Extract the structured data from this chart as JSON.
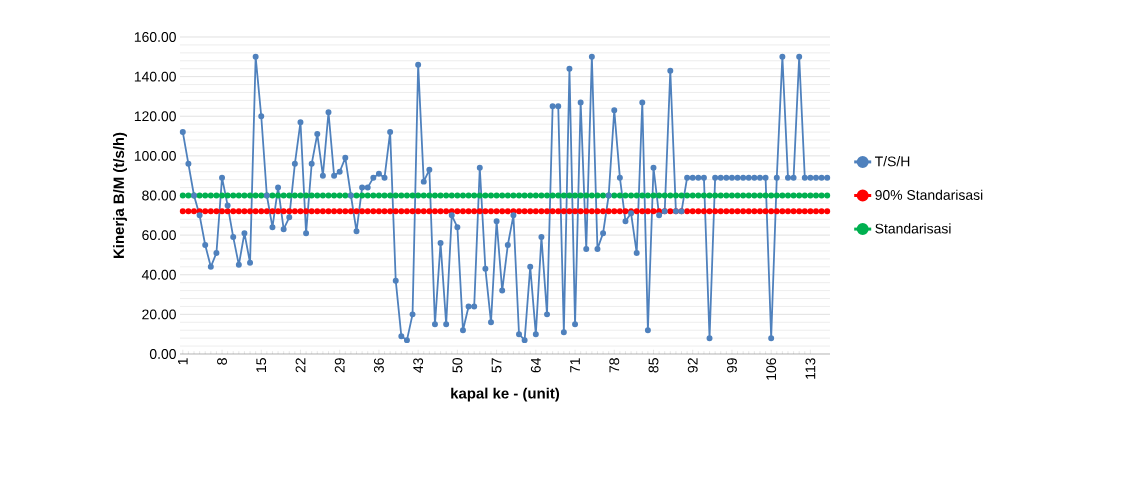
{
  "chart_data": {
    "type": "line",
    "xlabel": "kapal ke - (unit)",
    "ylabel": "Kinerja B/M (t/s/h)",
    "x": [
      1,
      2,
      3,
      4,
      5,
      6,
      7,
      8,
      9,
      10,
      11,
      12,
      13,
      14,
      15,
      16,
      17,
      18,
      19,
      20,
      21,
      22,
      23,
      24,
      25,
      26,
      27,
      28,
      29,
      30,
      31,
      32,
      33,
      34,
      35,
      36,
      37,
      38,
      39,
      40,
      41,
      42,
      43,
      44,
      45,
      46,
      47,
      48,
      49,
      50,
      51,
      52,
      53,
      54,
      55,
      56,
      57,
      58,
      59,
      60,
      61,
      62,
      63,
      64,
      65,
      66,
      67,
      68,
      69,
      70,
      71,
      72,
      73,
      74,
      75,
      76,
      77,
      78,
      79,
      80,
      81,
      82,
      83,
      84,
      85,
      86,
      87,
      88,
      89,
      90,
      91,
      92,
      93,
      94,
      95,
      96,
      97,
      98,
      99,
      100,
      101,
      102,
      103,
      104,
      105,
      106,
      107,
      108,
      109,
      110,
      111,
      112,
      113,
      114,
      115,
      116
    ],
    "series": [
      {
        "name": "T/S/H",
        "color": "#4f81bd",
        "values": [
          112,
          96,
          80,
          70,
          55,
          44,
          51,
          89,
          75,
          59,
          45,
          61,
          46,
          150,
          120,
          80,
          64,
          84,
          63,
          69,
          96,
          117,
          61,
          96,
          111,
          90,
          122,
          90,
          92,
          99,
          80,
          62,
          84,
          84,
          89,
          91,
          89,
          112,
          37,
          9,
          7,
          20,
          146,
          87,
          93,
          15,
          56,
          15,
          70,
          64,
          12,
          24,
          24,
          94,
          43,
          16,
          67,
          32,
          55,
          70,
          10,
          7,
          44,
          10,
          59,
          20,
          125,
          125,
          11,
          144,
          15,
          127,
          53,
          150,
          53,
          61,
          80,
          123,
          89,
          67,
          71,
          51,
          127,
          12,
          94,
          70,
          72,
          143,
          72,
          72,
          89,
          89,
          89,
          89,
          8,
          89,
          89,
          89,
          89,
          89,
          89,
          89,
          89,
          89,
          89,
          8,
          89,
          150,
          89,
          89,
          150,
          89,
          89,
          89,
          89,
          89
        ]
      },
      {
        "name": "90% Standarisasi",
        "color": "#ff0000",
        "values": [
          72,
          72,
          72,
          72,
          72,
          72,
          72,
          72,
          72,
          72,
          72,
          72,
          72,
          72,
          72,
          72,
          72,
          72,
          72,
          72,
          72,
          72,
          72,
          72,
          72,
          72,
          72,
          72,
          72,
          72,
          72,
          72,
          72,
          72,
          72,
          72,
          72,
          72,
          72,
          72,
          72,
          72,
          72,
          72,
          72,
          72,
          72,
          72,
          72,
          72,
          72,
          72,
          72,
          72,
          72,
          72,
          72,
          72,
          72,
          72,
          72,
          72,
          72,
          72,
          72,
          72,
          72,
          72,
          72,
          72,
          72,
          72,
          72,
          72,
          72,
          72,
          72,
          72,
          72,
          72,
          72,
          72,
          72,
          72,
          72,
          72,
          72,
          72,
          72,
          72,
          72,
          72,
          72,
          72,
          72,
          72,
          72,
          72,
          72,
          72,
          72,
          72,
          72,
          72,
          72,
          72,
          72,
          72,
          72,
          72,
          72,
          72,
          72,
          72,
          72,
          72
        ]
      },
      {
        "name": "Standarisasi",
        "color": "#00b050",
        "values": [
          80,
          80,
          80,
          80,
          80,
          80,
          80,
          80,
          80,
          80,
          80,
          80,
          80,
          80,
          80,
          80,
          80,
          80,
          80,
          80,
          80,
          80,
          80,
          80,
          80,
          80,
          80,
          80,
          80,
          80,
          80,
          80,
          80,
          80,
          80,
          80,
          80,
          80,
          80,
          80,
          80,
          80,
          80,
          80,
          80,
          80,
          80,
          80,
          80,
          80,
          80,
          80,
          80,
          80,
          80,
          80,
          80,
          80,
          80,
          80,
          80,
          80,
          80,
          80,
          80,
          80,
          80,
          80,
          80,
          80,
          80,
          80,
          80,
          80,
          80,
          80,
          80,
          80,
          80,
          80,
          80,
          80,
          80,
          80,
          80,
          80,
          80,
          80,
          80,
          80,
          80,
          80,
          80,
          80,
          80,
          80,
          80,
          80,
          80,
          80,
          80,
          80,
          80,
          80,
          80,
          80,
          80,
          80,
          80,
          80,
          80,
          80,
          80,
          80,
          80,
          80
        ]
      }
    ],
    "xlim": [
      0.5,
      116.5
    ],
    "xticks": [
      1,
      8,
      15,
      22,
      29,
      36,
      43,
      50,
      57,
      64,
      71,
      78,
      85,
      92,
      99,
      106,
      113
    ],
    "ylim": [
      0,
      160
    ],
    "yticks": [
      {
        "value": 0,
        "label": "0.00"
      },
      {
        "value": 20,
        "label": "20.00"
      },
      {
        "value": 40,
        "label": "40.00"
      },
      {
        "value": 60,
        "label": "60.00"
      },
      {
        "value": 80,
        "label": "80.00"
      },
      {
        "value": 100,
        "label": "100.00"
      },
      {
        "value": 120,
        "label": "120.00"
      },
      {
        "value": 140,
        "label": "140.00"
      },
      {
        "value": 160,
        "label": "160.00"
      }
    ],
    "grid": "y",
    "legend": "right",
    "marker": "circle",
    "line_style": "solid"
  }
}
